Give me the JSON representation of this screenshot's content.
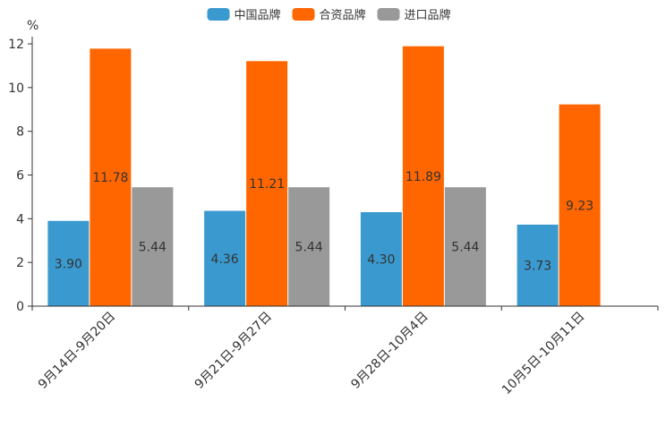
{
  "chart_data": {
    "type": "bar",
    "title": "",
    "ylabel": "%",
    "xlabel": "",
    "ylim": [
      0,
      12
    ],
    "yticks": [
      0,
      2,
      4,
      6,
      8,
      10,
      12
    ],
    "legend_position": "top-center",
    "categories": [
      "9月14日-9月20日",
      "9月21日-9月27日",
      "9月28日-10月4日",
      "10月5日-10月11日"
    ],
    "series": [
      {
        "name": "中国品牌",
        "color": "#3a9ad0",
        "values": [
          3.9,
          4.36,
          4.3,
          3.73
        ]
      },
      {
        "name": "合资品牌",
        "color": "#ff6600",
        "values": [
          11.78,
          11.21,
          11.89,
          9.23
        ]
      },
      {
        "name": "进口品牌",
        "color": "#999999",
        "values": [
          5.44,
          5.44,
          5.44,
          null
        ]
      }
    ]
  }
}
